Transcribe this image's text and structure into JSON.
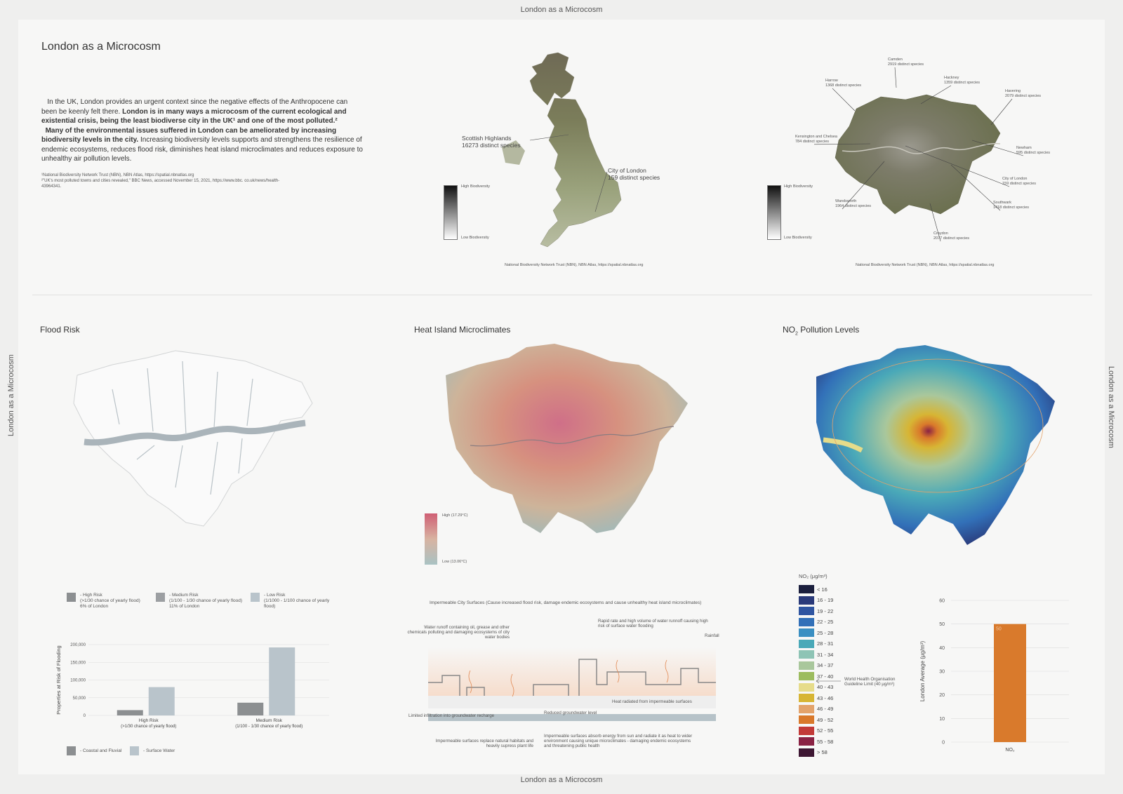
{
  "frame": {
    "top": "London as a Microcosm",
    "bottom": "London as a Microcosm",
    "left": "London as a Microcosm",
    "right": "London as a Microcosm"
  },
  "intro": {
    "title": "London as a Microcosm",
    "p1": "In the UK, London provides an urgent context since the negative effects of the Anthropocene can been be keenly felt there.",
    "p2_bold": "London is in many ways a microcosm of the current ecological and existential crisis, being the least biodiverse city in the UK¹ and one of the most polluted.²",
    "p3_bold": "Many of the environmental issues suffered in London can be ameliorated by increasing biodiversity levels in the city.",
    "p4": "Increasing biodiversity levels supports and strengthens the resilience of endemic ecosystems, reduces flood risk, diminishes heat island microclimates and reduces exposure to unhealthy air pollution levels.",
    "note1": "¹National Biodiversity Network Trust (NBN), NBN Atlas, https://spatial.nbnatlas.org",
    "note2": "²\"UK's most polluted towns and cities revealed,\" BBC News, accessed November 15, 2021, https://www.bbc. co.uk/news/health-43964341."
  },
  "uk_map": {
    "label_highlands": "Scottish Highlands",
    "label_highlands_species": "16273 distinct species",
    "label_london": "City of London",
    "label_london_species": "159 distinct species",
    "legend_high": "High Biodiversity",
    "legend_low": "Low Biodiversity",
    "source": "National Biodiversity Network Trust (NBN), NBN Atlas, https://spatial.nbnatlas.org"
  },
  "london_map": {
    "boroughs": [
      {
        "name": "Camden",
        "species": "2919 distinct species"
      },
      {
        "name": "Harrow",
        "species": "1368 distinct species"
      },
      {
        "name": "Hackney",
        "species": "1359 distinct species"
      },
      {
        "name": "Havering",
        "species": "2079 distinct species"
      },
      {
        "name": "Kensington and Chelsea",
        "species": "784 distinct species"
      },
      {
        "name": "Newham",
        "species": "595 distinct species"
      },
      {
        "name": "City of London",
        "species": "159 distinct species"
      },
      {
        "name": "Wandsworth",
        "species": "1964 distinct species"
      },
      {
        "name": "Southwark",
        "species": "1418 distinct species"
      },
      {
        "name": "Croydon",
        "species": "2077 distinct species"
      }
    ],
    "legend_high": "High Biodiversity",
    "legend_low": "Low Biodiversity",
    "source": "National Biodiversity Network Trust (NBN), NBN Atlas, https://spatial.nbnatlas.org"
  },
  "flood": {
    "title": "Flood Risk",
    "keys": [
      {
        "label": "- High Risk",
        "detail": "(>1/30 chance of yearly flood)",
        "share": "6% of London",
        "color": "#8c8f91"
      },
      {
        "label": "- Medium Risk",
        "detail": "(1/100 - 1/30 chance of yearly flood)",
        "share": "11% of London",
        "color": "#9c9fa2"
      },
      {
        "label": "- Low Risk",
        "detail": "(1/1000 - 1/100 chance of yearly flood)",
        "share": "",
        "color": "#b9c4cb"
      }
    ],
    "series_keys": [
      {
        "label": "- Coastal and Fluvial",
        "color": "#8c8f91"
      },
      {
        "label": "- Surface Water",
        "color": "#b9c4cb"
      }
    ]
  },
  "heat": {
    "title": "Heat Island Microclimates",
    "legend_high": "High (17.29°C)",
    "legend_low": "Low (13.06°C)",
    "diagram": {
      "header": "Impermeable City Surfaces (Cause increased flood risk, damage endemic ecosystems and cause unhealthy heat island microclimates)",
      "runoff": "Water runoff containing oil, grease and other chemicals polluting and damaging ecosystems of city water bodies",
      "rapid": "Rapid rate and high volume of water runnoff causing high risk of surface water flooding",
      "rainfall": "Rainfall",
      "heat_radiated": "Heat radiated from impermeable surfaces",
      "infiltration": "Limited infiltration into groundwater recharge",
      "groundwater": "Reduced groundwater level",
      "habitats": "Impermeable surfaces replace natural habitats and heavily supress plant life",
      "absorb": "Impermeable surfaces absorb energy from sun and radiate it as heat to wider environment causing unique microclimates - damaging endemic ecosystems and threatening public health"
    }
  },
  "no2": {
    "title_pre": "NO",
    "title_sub": "2",
    "title_post": " Pollution Levels",
    "legend_title": "NO₂ (μg/m³)",
    "legend": [
      {
        "label": "< 16",
        "color": "#1b1f3d"
      },
      {
        "label": "16 - 19",
        "color": "#2a3a7a"
      },
      {
        "label": "19 - 22",
        "color": "#2f55a1"
      },
      {
        "label": "22 - 25",
        "color": "#3270b8"
      },
      {
        "label": "25 - 28",
        "color": "#3a8fc2"
      },
      {
        "label": "28 - 31",
        "color": "#4aa9b8"
      },
      {
        "label": "31 - 34",
        "color": "#8ec4b5"
      },
      {
        "label": "34 - 37",
        "color": "#a9c79c"
      },
      {
        "label": "37 - 40",
        "color": "#9cbc5e"
      },
      {
        "label": "40 - 43",
        "color": "#e6dc8a"
      },
      {
        "label": "43 - 46",
        "color": "#d7b534"
      },
      {
        "label": "46 - 49",
        "color": "#e3a36b"
      },
      {
        "label": "49 - 52",
        "color": "#d9792b"
      },
      {
        "label": "52 - 55",
        "color": "#c23a38"
      },
      {
        "label": "55 - 58",
        "color": "#8a2244"
      },
      {
        "label": "> 58",
        "color": "#3e1733"
      }
    ],
    "guideline": "World Health Organisation Guideline Limit (40 μg/m³)"
  },
  "chart_data": [
    {
      "type": "bar",
      "title": "",
      "ylabel": "Properties at Risk of Flooding",
      "categories": [
        "High Risk (>1/30 chance of yearly flood)",
        "Medium Risk (1/100 - 1/30 chance of yearly flood)"
      ],
      "category_lines": [
        [
          "High Risk",
          "(>1/30 chance of yearly flood)"
        ],
        [
          "Medium Risk",
          "(1/100 - 1/30 chance of yearly flood)"
        ]
      ],
      "series": [
        {
          "name": "Coastal and Fluvial",
          "values": [
            15000,
            36000
          ],
          "color": "#8c8f91"
        },
        {
          "name": "Surface Water",
          "values": [
            80000,
            192000
          ],
          "color": "#b9c4cb"
        }
      ],
      "ylim": [
        0,
        200000
      ],
      "yticks": [
        "0",
        "50,000",
        "100,000",
        "150,000",
        "200,000"
      ],
      "ytick_values": [
        0,
        50000,
        100000,
        150000,
        200000
      ],
      "grid": true
    },
    {
      "type": "bar",
      "title": "",
      "ylabel": "London Average (μg/m³)",
      "categories": [
        "NO₂"
      ],
      "values": [
        50
      ],
      "data_labels": [
        "50"
      ],
      "color": "#d97a2c",
      "ylim": [
        0,
        60
      ],
      "yticks": [
        0,
        10,
        20,
        30,
        40,
        50,
        60
      ],
      "grid": true
    }
  ]
}
